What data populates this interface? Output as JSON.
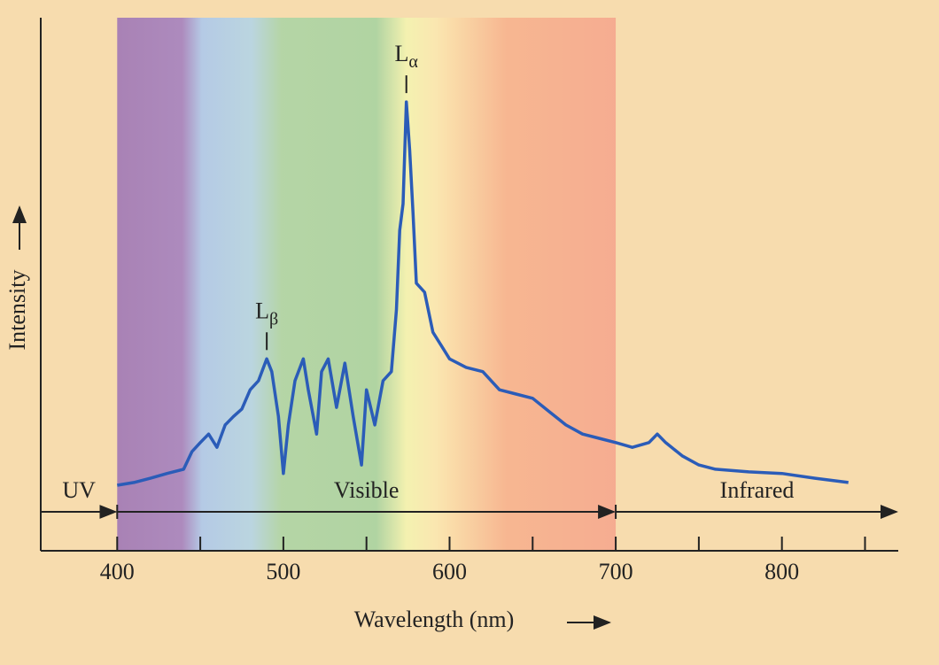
{
  "chart_data": {
    "type": "line",
    "x_label": "Wavelength (nm)",
    "y_label": "Intensity",
    "xlim": [
      354,
      870
    ],
    "ylim": [
      0,
      100
    ],
    "xticks": [
      400,
      500,
      600,
      700,
      800
    ],
    "xminorticks": [
      450,
      550,
      650,
      750,
      850
    ],
    "bands": [
      {
        "label": "UV",
        "from": 354,
        "to": 400
      },
      {
        "label": "Visible",
        "from": 400,
        "to": 700
      },
      {
        "label": "Infrared",
        "from": 700,
        "to": 870
      }
    ],
    "annotations": [
      {
        "label": "L",
        "subscript": "β",
        "x": 490
      },
      {
        "label": "L",
        "subscript": "α",
        "x": 574
      }
    ],
    "series": [
      {
        "color": "#2b5cb8",
        "x": [
          400,
          410,
          420,
          430,
          440,
          445,
          450,
          455,
          460,
          465,
          470,
          475,
          480,
          485,
          490,
          493,
          497,
          500,
          503,
          507,
          512,
          515,
          520,
          523,
          527,
          532,
          537,
          542,
          547,
          550,
          555,
          560,
          565,
          568,
          570,
          572,
          574,
          576,
          578,
          580,
          585,
          590,
          595,
          600,
          610,
          620,
          630,
          640,
          650,
          660,
          670,
          680,
          690,
          700,
          710,
          720,
          725,
          730,
          740,
          750,
          760,
          780,
          800,
          820,
          840
        ],
        "values": [
          12.3,
          12.8,
          13.6,
          14.5,
          15.3,
          18.6,
          20.3,
          21.9,
          19.4,
          23.6,
          25.2,
          26.6,
          30.2,
          31.9,
          36,
          33.6,
          25.2,
          14.5,
          23.6,
          31.9,
          36,
          30.2,
          21.9,
          33.6,
          36,
          26.9,
          35.2,
          25.2,
          16.1,
          30.2,
          23.6,
          31.9,
          33.6,
          45.2,
          60.1,
          65.1,
          84.2,
          75.1,
          63.5,
          50.2,
          48.5,
          41,
          38.5,
          36,
          34.4,
          33.6,
          30.2,
          29.4,
          28.6,
          26.1,
          23.6,
          21.9,
          21.1,
          20.3,
          19.4,
          20.3,
          21.9,
          20.3,
          17.8,
          16.1,
          15.3,
          14.8,
          14.5,
          13.6,
          12.8
        ]
      }
    ]
  }
}
